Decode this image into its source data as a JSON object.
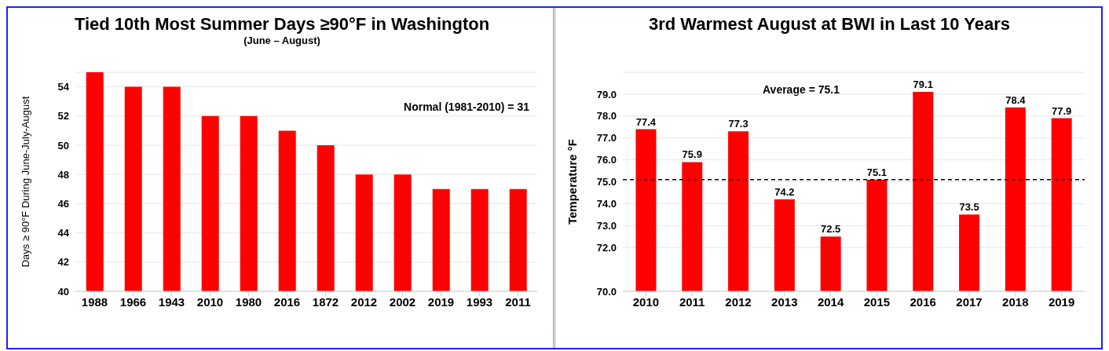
{
  "chart_data": [
    {
      "type": "bar",
      "title": "Tied 10th Most Summer Days ≥90°F in Washington",
      "subtitle": "(June – August)",
      "ylabel": "Days ≥ 90°F During June-July-August",
      "categories": [
        "1988",
        "1966",
        "1943",
        "2010",
        "1980",
        "2016",
        "1872",
        "2012",
        "2002",
        "2019",
        "1993",
        "2011"
      ],
      "values": [
        55,
        54,
        54,
        52,
        52,
        51,
        50,
        48,
        48,
        47,
        47,
        47
      ],
      "color": "#ff0000",
      "ylim": [
        40,
        55
      ],
      "yticks": [
        40,
        42,
        44,
        46,
        48,
        50,
        52,
        54
      ],
      "grid": "y",
      "annotations": [
        "Normal (1981-2010) = 31"
      ]
    },
    {
      "type": "bar",
      "title": "3rd Warmest August at BWI in Last 10 Years",
      "ylabel": "Temperature °F",
      "categories": [
        "2010",
        "2011",
        "2012",
        "2013",
        "2014",
        "2015",
        "2016",
        "2017",
        "2018",
        "2019"
      ],
      "values": [
        77.4,
        75.9,
        77.3,
        74.2,
        72.5,
        75.1,
        79.1,
        73.5,
        78.4,
        77.9
      ],
      "color": "#ff0000",
      "ylim": [
        70,
        80
      ],
      "yticks": [
        {
          "value": 70,
          "label": "70.0"
        },
        {
          "value": 72,
          "label": "72.0"
        },
        {
          "value": 73,
          "label": "73.0"
        },
        {
          "value": 74,
          "label": "74.0"
        },
        {
          "value": 75,
          "label": "75.0"
        },
        {
          "value": 76,
          "label": "76.0"
        },
        {
          "value": 77,
          "label": "77.0"
        },
        {
          "value": 78,
          "label": "78.0"
        },
        {
          "value": 79,
          "label": "79.0"
        }
      ],
      "grid": "y",
      "data_labels": true,
      "ref_lines": [
        {
          "axis": "y",
          "value": 75.1,
          "color": "#000000",
          "line_style": "dashed"
        }
      ],
      "annotations": [
        "Average = 75.1"
      ]
    }
  ]
}
